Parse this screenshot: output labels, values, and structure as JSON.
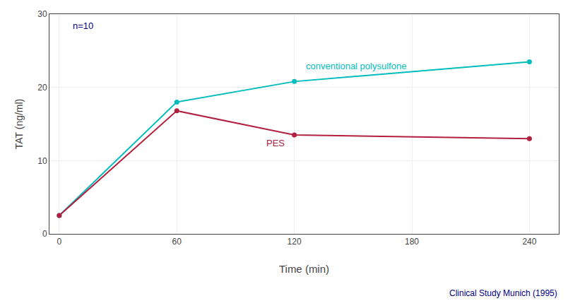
{
  "chart_data": {
    "type": "line",
    "x": [
      0,
      60,
      120,
      240
    ],
    "series": [
      {
        "color": "#00BCBD",
        "marker": "circle",
        "values": [
          2.5,
          18.0,
          20.8,
          23.5
        ]
      },
      {
        "color": "#B22040",
        "marker": "circle",
        "values": [
          2.5,
          16.8,
          13.5,
          13.0
        ]
      }
    ],
    "x_label": "Time (min)",
    "y_label": "TAT (ng/ml)",
    "xlim": [
      -5,
      255
    ],
    "ylim": [
      0,
      30
    ],
    "xticks": [
      0,
      60,
      120,
      180,
      240
    ],
    "yticks": [
      0,
      10,
      20,
      30
    ],
    "grid": true,
    "annotations": [
      {
        "text": "conventional polysulfone",
        "x": 125,
        "y": 22.0,
        "color": "#00BCBD"
      },
      {
        "text": "PES",
        "x": 105,
        "y": 11.5,
        "color": "#B22040"
      },
      {
        "text": "n=10",
        "x": 6,
        "y": 27.5,
        "color": "#000080"
      }
    ],
    "footnote": {
      "text": "Clinical Study Munich (1995)",
      "color": "#000080"
    }
  }
}
